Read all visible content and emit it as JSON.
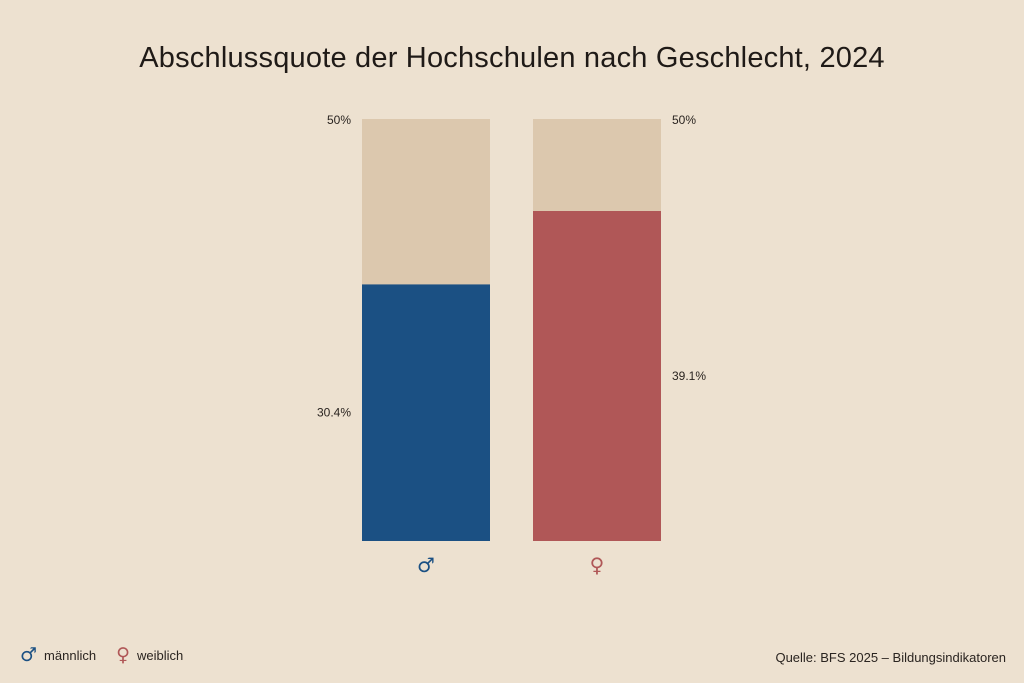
{
  "chart_data": {
    "type": "bar",
    "title": "Abschlussquote der Hochschulen nach Geschlecht, 2024",
    "ylim": [
      0,
      50
    ],
    "max_label": "50%",
    "categories": [
      "männlich",
      "weiblich"
    ],
    "series": [
      {
        "name": "männlich",
        "symbol": "♂",
        "value": 30.4,
        "label": "30.4%",
        "color": "#1b5083",
        "label_side": "left"
      },
      {
        "name": "weiblich",
        "symbol": "♀",
        "value": 39.1,
        "label": "39.1%",
        "color": "#b05757",
        "label_side": "right"
      }
    ],
    "background_bar_color": "#dcc8ae"
  },
  "legend": {
    "items": [
      {
        "symbol": "♂",
        "label": "männlich",
        "color": "#1b5083"
      },
      {
        "symbol": "♀",
        "label": "weiblich",
        "color": "#b05757"
      }
    ]
  },
  "source": "Quelle: BFS 2025 – Bildungsindikatoren"
}
